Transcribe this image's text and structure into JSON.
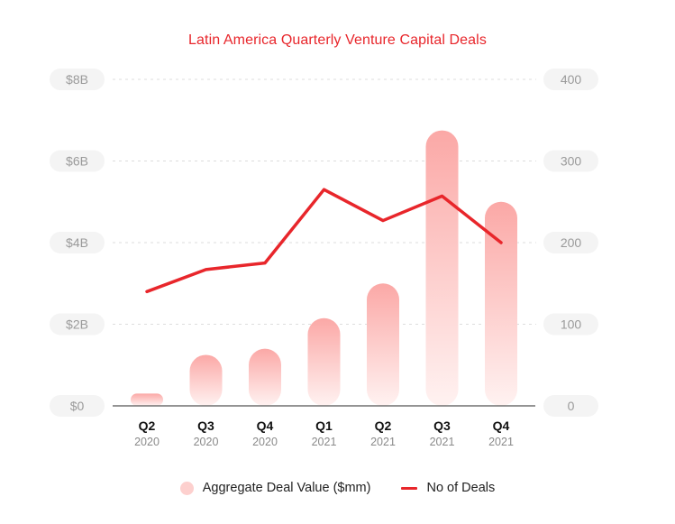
{
  "colors": {
    "accent": "#e8262b",
    "bar_top": "#fba8a6",
    "bar_bottom": "#fff2f1",
    "pill_bg": "#f4f4f4",
    "axis_text": "#9a9a9a",
    "grid": "#dddddd"
  },
  "chart_data": {
    "type": "bar",
    "title": "Latin America Quarterly Venture Capital Deals",
    "categories": [
      "Q2",
      "Q3",
      "Q4",
      "Q1",
      "Q2",
      "Q3",
      "Q4"
    ],
    "category_years": [
      "2020",
      "2020",
      "2020",
      "2021",
      "2021",
      "2021",
      "2021"
    ],
    "left_axis": {
      "ticks": [
        "$0",
        "$2B",
        "$4B",
        "$6B",
        "$8B"
      ],
      "ylim": [
        0,
        8
      ]
    },
    "right_axis": {
      "ticks": [
        "0",
        "100",
        "200",
        "300",
        "400"
      ],
      "ylim": [
        0,
        400
      ]
    },
    "grid": true,
    "series": [
      {
        "name": "Aggregate Deal Value ($mm)",
        "type": "bar",
        "axis": "left",
        "values": [
          0.3,
          1.25,
          1.4,
          2.15,
          3.0,
          6.75,
          5.0
        ]
      },
      {
        "name": "No of Deals",
        "type": "line",
        "axis": "right",
        "values": [
          140,
          167,
          175,
          265,
          227,
          257,
          200
        ]
      }
    ],
    "legend_position": "bottom-center"
  }
}
